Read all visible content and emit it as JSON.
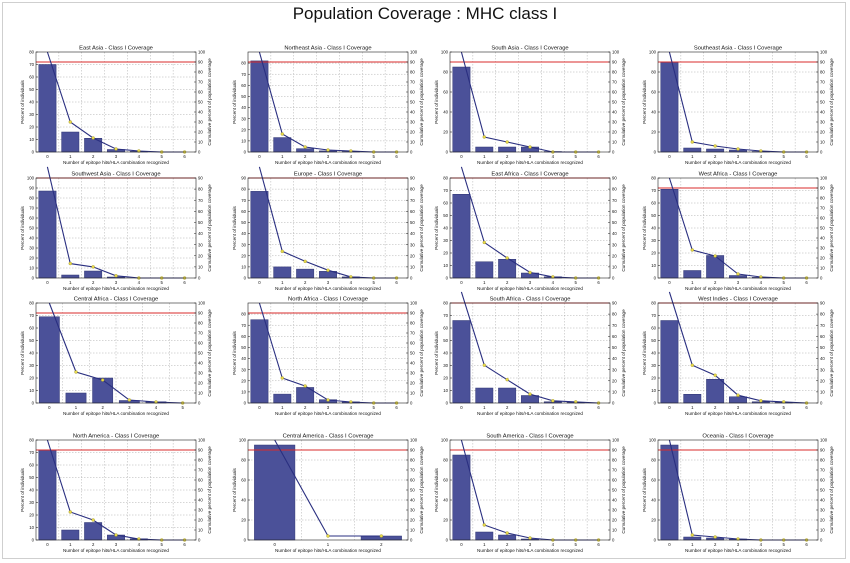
{
  "page_title": "Population Coverage : MHC class I",
  "colors": {
    "bar": "#4b5199",
    "line": "#2a2f80",
    "marker": "#e6d84a",
    "threshold": "#d92b2b",
    "grid": "#9a9a9a"
  },
  "chart_data": [
    {
      "type": "bar",
      "title": "East Asia - Class I Coverage",
      "xlabel": "Number of epitope hits/HLA combination recognized",
      "ylabel": "Percent of individuals",
      "y2label": "Cumulative percent of population coverage",
      "categories": [
        "0",
        "1",
        "2",
        "3",
        "4",
        "5",
        "6"
      ],
      "xticks": [
        "0",
        "1",
        "2",
        "3",
        "4",
        "5",
        "6"
      ],
      "values": [
        70,
        16,
        11,
        2,
        0.5,
        0,
        0
      ],
      "cumulative": [
        100,
        30,
        14,
        3,
        1,
        0,
        0
      ],
      "ylim": [
        0,
        80
      ],
      "yticks": [
        0,
        10,
        20,
        30,
        40,
        50,
        60,
        70,
        80
      ],
      "y2lim": [
        0,
        100
      ],
      "y2ticks": [
        0,
        10,
        20,
        30,
        40,
        50,
        60,
        70,
        80,
        90,
        100
      ],
      "threshold_pct": 90,
      "grid": true
    },
    {
      "type": "bar",
      "title": "Northeast Asia - Class I Coverage",
      "xlabel": "Number of epitope hits/HLA combination recognized",
      "ylabel": "Percent of individuals",
      "y2label": "Cumulative percent of population coverage",
      "categories": [
        "0",
        "1",
        "2",
        "3",
        "4",
        "5",
        "6"
      ],
      "xticks": [
        "0",
        "1",
        "2",
        "3",
        "4",
        "5",
        "6"
      ],
      "values": [
        82,
        13,
        3,
        1,
        0.5,
        0,
        0
      ],
      "cumulative": [
        100,
        18,
        5,
        2,
        1,
        0,
        0
      ],
      "ylim": [
        0,
        90
      ],
      "yticks": [
        0,
        10,
        20,
        30,
        40,
        50,
        60,
        70,
        80
      ],
      "y2lim": [
        0,
        100
      ],
      "y2ticks": [
        0,
        10,
        20,
        30,
        40,
        50,
        60,
        70,
        80,
        90,
        100
      ],
      "threshold_pct": 90,
      "grid": true
    },
    {
      "type": "bar",
      "title": "South Asia - Class I Coverage",
      "xlabel": "Number of epitope hits/HLA combination recognized",
      "ylabel": "Percent of individuals",
      "y2label": "Cumulative percent of population coverage",
      "categories": [
        "0",
        "1",
        "2",
        "3",
        "4",
        "5",
        "6"
      ],
      "xticks": [
        "0",
        "1",
        "2",
        "3",
        "4",
        "5",
        "6"
      ],
      "values": [
        85,
        5,
        5,
        5,
        0.5,
        0,
        0
      ],
      "cumulative": [
        100,
        15,
        10,
        5,
        0,
        0,
        0
      ],
      "ylim": [
        0,
        100
      ],
      "yticks": [
        0,
        20,
        40,
        60,
        80,
        100
      ],
      "y2lim": [
        0,
        100
      ],
      "y2ticks": [
        0,
        10,
        20,
        30,
        40,
        50,
        60,
        70,
        80,
        90,
        100
      ],
      "threshold_pct": 90,
      "grid": true
    },
    {
      "type": "bar",
      "title": "Southeast Asia - Class I Coverage",
      "xlabel": "Number of epitope hits/HLA combination recognized",
      "ylabel": "Percent of individuals",
      "y2label": "Cumulative percent of population coverage",
      "categories": [
        "0",
        "1",
        "2",
        "3",
        "4",
        "5",
        "6"
      ],
      "xticks": [
        "0",
        "1",
        "2",
        "3",
        "4",
        "5",
        "6"
      ],
      "values": [
        90,
        4,
        3,
        2,
        0.5,
        0,
        0
      ],
      "cumulative": [
        100,
        10,
        6,
        3,
        1,
        0,
        0
      ],
      "ylim": [
        0,
        100
      ],
      "yticks": [
        0,
        20,
        40,
        60,
        80,
        100
      ],
      "y2lim": [
        0,
        100
      ],
      "y2ticks": [
        0,
        10,
        20,
        30,
        40,
        50,
        60,
        70,
        80,
        90,
        100
      ],
      "threshold_pct": 90,
      "grid": true
    },
    {
      "type": "bar",
      "title": "Southwest Asia - Class I Coverage",
      "xlabel": "Number of epitope hits/HLA combination recognized",
      "ylabel": "Percent of individuals",
      "y2label": "Cumulative percent of population coverage",
      "categories": [
        "0",
        "1",
        "2",
        "3",
        "4",
        "5",
        "6"
      ],
      "xticks": [
        "0",
        "1",
        "2",
        "3",
        "4",
        "5",
        "6"
      ],
      "values": [
        87,
        3,
        7,
        1,
        0,
        0,
        0
      ],
      "cumulative": [
        100,
        13,
        10,
        2,
        0,
        0,
        0
      ],
      "ylim": [
        0,
        100
      ],
      "yticks": [
        0,
        10,
        20,
        30,
        40,
        50,
        60,
        70,
        80,
        90,
        100
      ],
      "y2lim": [
        0,
        90
      ],
      "y2ticks": [
        0,
        10,
        20,
        30,
        40,
        50,
        60,
        70,
        80,
        90
      ],
      "threshold_pct": 90,
      "grid": true
    },
    {
      "type": "bar",
      "title": "Europe - Class I Coverage",
      "xlabel": "Number of epitope hits/HLA combination recognized",
      "ylabel": "Percent of individuals",
      "y2label": "Cumulative percent of population coverage",
      "categories": [
        "0",
        "1",
        "2",
        "3",
        "4",
        "5",
        "6"
      ],
      "xticks": [
        "0",
        "1",
        "2",
        "3",
        "4",
        "5",
        "6"
      ],
      "values": [
        78,
        10,
        8,
        6,
        1,
        0,
        0
      ],
      "cumulative": [
        100,
        24,
        15,
        7,
        1,
        0,
        0
      ],
      "ylim": [
        0,
        90
      ],
      "yticks": [
        0,
        10,
        20,
        30,
        40,
        50,
        60,
        70,
        80,
        90
      ],
      "y2lim": [
        0,
        90
      ],
      "y2ticks": [
        0,
        10,
        20,
        30,
        40,
        50,
        60,
        70,
        80,
        90
      ],
      "threshold_pct": 90,
      "grid": true
    },
    {
      "type": "bar",
      "title": "East Africa - Class I Coverage",
      "xlabel": "Number of epitope hits/HLA combination recognized",
      "ylabel": "Percent of individuals",
      "y2label": "Cumulative percent of population coverage",
      "categories": [
        "0",
        "1",
        "2",
        "3",
        "4",
        "5",
        "6"
      ],
      "xticks": [
        "0",
        "1",
        "2",
        "3",
        "4",
        "5",
        "6"
      ],
      "values": [
        67,
        13,
        15,
        4,
        1,
        0,
        0
      ],
      "cumulative": [
        100,
        32,
        18,
        5,
        1,
        0,
        0
      ],
      "ylim": [
        0,
        80
      ],
      "yticks": [
        0,
        10,
        20,
        30,
        40,
        50,
        60,
        70,
        80
      ],
      "y2lim": [
        0,
        90
      ],
      "y2ticks": [
        0,
        10,
        20,
        30,
        40,
        50,
        60,
        70,
        80,
        90
      ],
      "threshold_pct": 90,
      "grid": true
    },
    {
      "type": "bar",
      "title": "West Africa - Class I Coverage",
      "xlabel": "Number of epitope hits/HLA combination recognized",
      "ylabel": "Percent of individuals",
      "y2label": "Cumulative percent of population coverage",
      "categories": [
        "0",
        "1",
        "2",
        "3",
        "4",
        "5",
        "6"
      ],
      "xticks": [
        "0",
        "1",
        "2",
        "3",
        "4",
        "5",
        "6"
      ],
      "values": [
        71,
        6,
        18,
        2,
        0.5,
        0,
        0
      ],
      "cumulative": [
        100,
        28,
        22,
        4,
        1,
        0,
        0
      ],
      "ylim": [
        0,
        80
      ],
      "yticks": [
        0,
        10,
        20,
        30,
        40,
        50,
        60,
        70,
        80
      ],
      "y2lim": [
        0,
        100
      ],
      "y2ticks": [
        0,
        10,
        20,
        30,
        40,
        50,
        60,
        70,
        80,
        90,
        100
      ],
      "threshold_pct": 90,
      "grid": true
    },
    {
      "type": "bar",
      "title": "Central Africa - Class I Coverage",
      "xlabel": "Number of epitope hits/HLA combination recognized",
      "ylabel": "Percent of individuals",
      "y2label": "Cumulative percent of population coverage",
      "categories": [
        "0",
        "1",
        "2",
        "3",
        "4",
        "5"
      ],
      "xticks": [
        "0",
        "1",
        "2",
        "3",
        "4",
        "5"
      ],
      "values": [
        69,
        8,
        20,
        2,
        1,
        0
      ],
      "cumulative": [
        100,
        31,
        23,
        3,
        1,
        0
      ],
      "ylim": [
        0,
        80
      ],
      "yticks": [
        0,
        10,
        20,
        30,
        40,
        50,
        60,
        70,
        80
      ],
      "y2lim": [
        0,
        100
      ],
      "y2ticks": [
        0,
        10,
        20,
        30,
        40,
        50,
        60,
        70,
        80,
        90,
        100
      ],
      "threshold_pct": 90,
      "grid": true
    },
    {
      "type": "bar",
      "title": "North Africa - Class I Coverage",
      "xlabel": "Number of epitope hits/HLA combination recognized",
      "ylabel": "Percent of individuals",
      "y2label": "Cumulative percent of population coverage",
      "categories": [
        "0",
        "1",
        "2",
        "3",
        "4",
        "5",
        "6"
      ],
      "xticks": [
        "0",
        "1",
        "2",
        "3",
        "4",
        "5",
        "6"
      ],
      "values": [
        75,
        8,
        14,
        3,
        1,
        0,
        0
      ],
      "cumulative": [
        100,
        25,
        17,
        3,
        1,
        0,
        0
      ],
      "ylim": [
        0,
        90
      ],
      "yticks": [
        0,
        10,
        20,
        30,
        40,
        50,
        60,
        70,
        80
      ],
      "y2lim": [
        0,
        100
      ],
      "y2ticks": [
        0,
        10,
        20,
        30,
        40,
        50,
        60,
        70,
        80,
        90,
        100
      ],
      "threshold_pct": 90,
      "grid": true
    },
    {
      "type": "bar",
      "title": "South Africa - Class I Coverage",
      "xlabel": "Number of epitope hits/HLA combination recognized",
      "ylabel": "Percent of individuals",
      "y2label": "Cumulative percent of population coverage",
      "categories": [
        "0",
        "1",
        "2",
        "3",
        "4",
        "5",
        "6"
      ],
      "xticks": [
        "0",
        "1",
        "2",
        "3",
        "4",
        "5",
        "6"
      ],
      "values": [
        66,
        12,
        12,
        6,
        1,
        0.5,
        0
      ],
      "cumulative": [
        100,
        34,
        21,
        8,
        2,
        1,
        0
      ],
      "ylim": [
        0,
        80
      ],
      "yticks": [
        0,
        10,
        20,
        30,
        40,
        50,
        60,
        70,
        80
      ],
      "y2lim": [
        0,
        90
      ],
      "y2ticks": [
        0,
        10,
        20,
        30,
        40,
        50,
        60,
        70,
        80,
        90
      ],
      "threshold_pct": 90,
      "grid": true
    },
    {
      "type": "bar",
      "title": "West Indies - Class I Coverage",
      "xlabel": "Number of epitope hits/HLA combination recognized",
      "ylabel": "Percent of individuals",
      "y2label": "Cumulative percent of population coverage",
      "categories": [
        "0",
        "1",
        "2",
        "3",
        "4",
        "5",
        "6"
      ],
      "xticks": [
        "0",
        "1",
        "2",
        "3",
        "4",
        "5",
        "6"
      ],
      "values": [
        66,
        7,
        19,
        5,
        1,
        0.5,
        0
      ],
      "cumulative": [
        100,
        34,
        25,
        7,
        2,
        1,
        0
      ],
      "ylim": [
        0,
        80
      ],
      "yticks": [
        0,
        10,
        20,
        30,
        40,
        50,
        60,
        70,
        80
      ],
      "y2lim": [
        0,
        90
      ],
      "y2ticks": [
        0,
        10,
        20,
        30,
        40,
        50,
        60,
        70,
        80,
        90
      ],
      "threshold_pct": 90,
      "grid": true
    },
    {
      "type": "bar",
      "title": "North America - Class I Coverage",
      "xlabel": "Number of epitope hits/HLA combination recognized",
      "ylabel": "Percent of individuals",
      "y2label": "Cumulative percent of population coverage",
      "categories": [
        "0",
        "1",
        "2",
        "3",
        "4",
        "5",
        "6"
      ],
      "xticks": [
        "0",
        "1",
        "2",
        "3",
        "4",
        "5",
        "6"
      ],
      "values": [
        72,
        8,
        14,
        4,
        1,
        0,
        0
      ],
      "cumulative": [
        100,
        28,
        20,
        5,
        1,
        0,
        0
      ],
      "ylim": [
        0,
        80
      ],
      "yticks": [
        0,
        10,
        20,
        30,
        40,
        50,
        60,
        70,
        80
      ],
      "y2lim": [
        0,
        100
      ],
      "y2ticks": [
        0,
        10,
        20,
        30,
        40,
        50,
        60,
        70,
        80,
        90,
        100
      ],
      "threshold_pct": 90,
      "grid": true
    },
    {
      "type": "bar",
      "title": "Central America - Class I Coverage",
      "xlabel": "Number of epitope hits/HLA combination recognized",
      "ylabel": "Percent of individuals",
      "y2label": "Cumulative percent of population coverage",
      "categories": [
        "0",
        "1",
        "2"
      ],
      "xticks": [
        "0",
        "1",
        "2"
      ],
      "values": [
        95,
        0,
        4
      ],
      "cumulative": [
        100,
        4,
        4
      ],
      "ylim": [
        0,
        100
      ],
      "yticks": [
        0,
        20,
        40,
        60,
        80,
        100
      ],
      "y2lim": [
        0,
        100
      ],
      "y2ticks": [
        0,
        10,
        20,
        30,
        40,
        50,
        60,
        70,
        80,
        90,
        100
      ],
      "threshold_pct": 90,
      "grid": true
    },
    {
      "type": "bar",
      "title": "South America - Class I Coverage",
      "xlabel": "Number of epitope hits/HLA combination recognized",
      "ylabel": "Percent of individuals",
      "y2label": "Cumulative percent of population coverage",
      "categories": [
        "0",
        "1",
        "2",
        "3",
        "4",
        "5",
        "6"
      ],
      "xticks": [
        "0",
        "1",
        "2",
        "3",
        "4",
        "5",
        "6"
      ],
      "values": [
        85,
        8,
        5,
        1,
        0,
        0,
        0
      ],
      "cumulative": [
        100,
        15,
        7,
        2,
        0,
        0,
        0
      ],
      "ylim": [
        0,
        100
      ],
      "yticks": [
        0,
        20,
        40,
        60,
        80,
        100
      ],
      "y2lim": [
        0,
        100
      ],
      "y2ticks": [
        0,
        10,
        20,
        30,
        40,
        50,
        60,
        70,
        80,
        90,
        100
      ],
      "threshold_pct": 90,
      "grid": true
    },
    {
      "type": "bar",
      "title": "Oceania - Class I Coverage",
      "xlabel": "Number of epitope hits/HLA combination recognized",
      "ylabel": "Percent of individuals",
      "y2label": "Cumulative percent of population coverage",
      "categories": [
        "0",
        "1",
        "2",
        "3",
        "4",
        "5",
        "6"
      ],
      "xticks": [
        "0",
        "1",
        "2",
        "3",
        "4",
        "5",
        "6"
      ],
      "values": [
        95,
        3,
        2,
        1,
        0,
        0,
        0
      ],
      "cumulative": [
        100,
        5,
        3,
        1,
        0,
        0,
        0
      ],
      "ylim": [
        0,
        100
      ],
      "yticks": [
        0,
        20,
        40,
        60,
        80,
        100
      ],
      "y2lim": [
        0,
        100
      ],
      "y2ticks": [
        0,
        10,
        20,
        30,
        40,
        50,
        60,
        70,
        80,
        90,
        100
      ],
      "threshold_pct": 90,
      "grid": true
    }
  ]
}
